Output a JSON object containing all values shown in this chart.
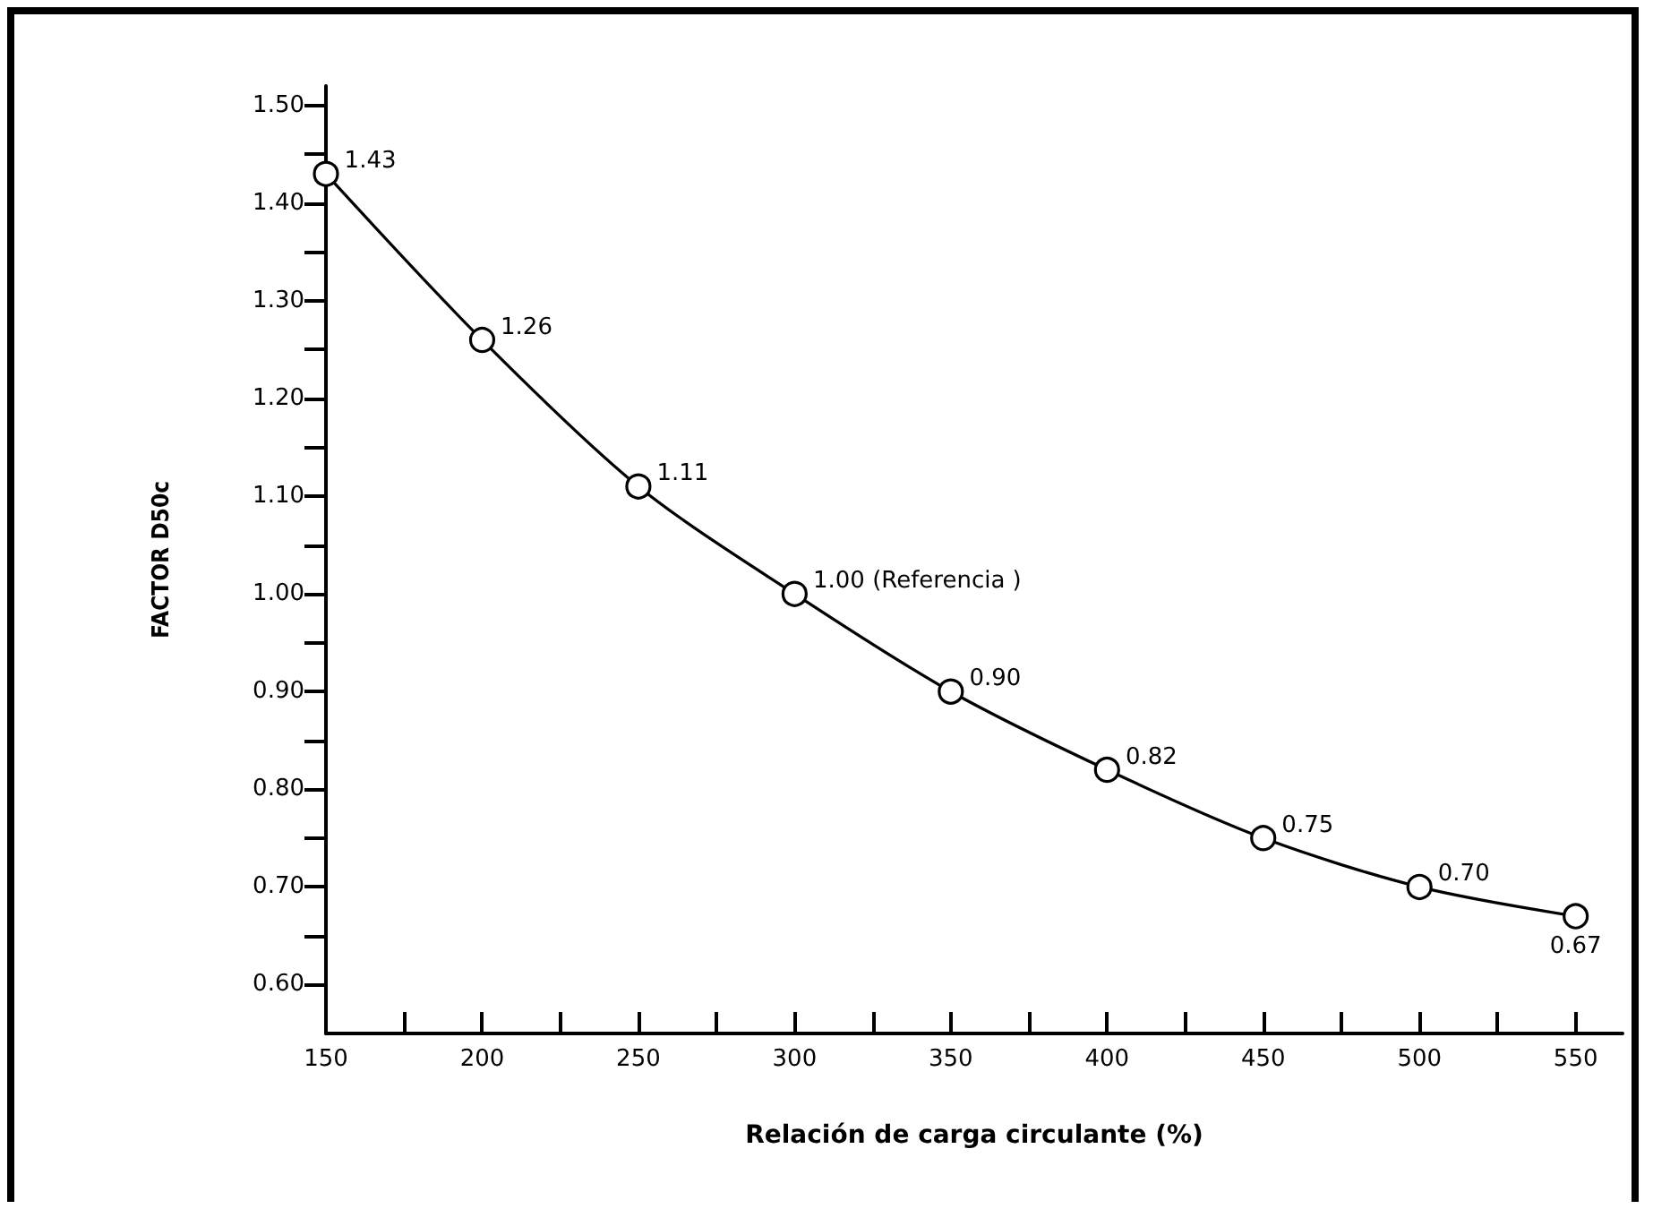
{
  "chart_data": {
    "type": "line",
    "xlabel": "Relación de carga circulante (%)",
    "ylabel": "FACTOR D50c",
    "x": [
      150,
      200,
      250,
      300,
      350,
      400,
      450,
      500,
      550
    ],
    "series": [
      {
        "color": "#000000",
        "values": [
          1.43,
          1.26,
          1.11,
          1.0,
          0.9,
          0.82,
          0.75,
          0.7,
          0.67
        ],
        "value_labels": [
          "1.43",
          "1.26",
          "1.11",
          "1.00 (Referencia )",
          "0.90",
          "0.82",
          "0.75",
          "0.70",
          "0.67"
        ]
      }
    ],
    "xlim": [
      150,
      565
    ],
    "ylim": [
      0.55,
      1.52
    ],
    "xticks": [
      150,
      {
        "value": 175,
        "label": null
      },
      200,
      {
        "value": 225,
        "label": null
      },
      250,
      {
        "value": 275,
        "label": null
      },
      300,
      {
        "value": 325,
        "label": null
      },
      350,
      {
        "value": 375,
        "label": null
      },
      400,
      {
        "value": 425,
        "label": null
      },
      450,
      {
        "value": 475,
        "label": null
      },
      500,
      {
        "value": 525,
        "label": null
      },
      550
    ],
    "yticks": [
      {
        "value": 0.6,
        "label": "0.60"
      },
      {
        "value": 0.65,
        "label": null
      },
      {
        "value": 0.7,
        "label": "0.70"
      },
      {
        "value": 0.75,
        "label": null
      },
      {
        "value": 0.8,
        "label": "0.80"
      },
      {
        "value": 0.85,
        "label": null
      },
      {
        "value": 0.9,
        "label": "0.90"
      },
      {
        "value": 0.95,
        "label": null
      },
      {
        "value": 1.0,
        "label": "1.00"
      },
      {
        "value": 1.05,
        "label": null
      },
      {
        "value": 1.1,
        "label": "1.10"
      },
      {
        "value": 1.15,
        "label": null
      },
      {
        "value": 1.2,
        "label": "1.20"
      },
      {
        "value": 1.25,
        "label": null
      },
      {
        "value": 1.3,
        "label": "1.30"
      },
      {
        "value": 1.35,
        "label": null
      },
      {
        "value": 1.4,
        "label": "1.40"
      },
      {
        "value": 1.45,
        "label": null
      },
      {
        "value": 1.5,
        "label": "1.50"
      }
    ],
    "grid": false,
    "marker": "circle",
    "line_style": "solid"
  }
}
